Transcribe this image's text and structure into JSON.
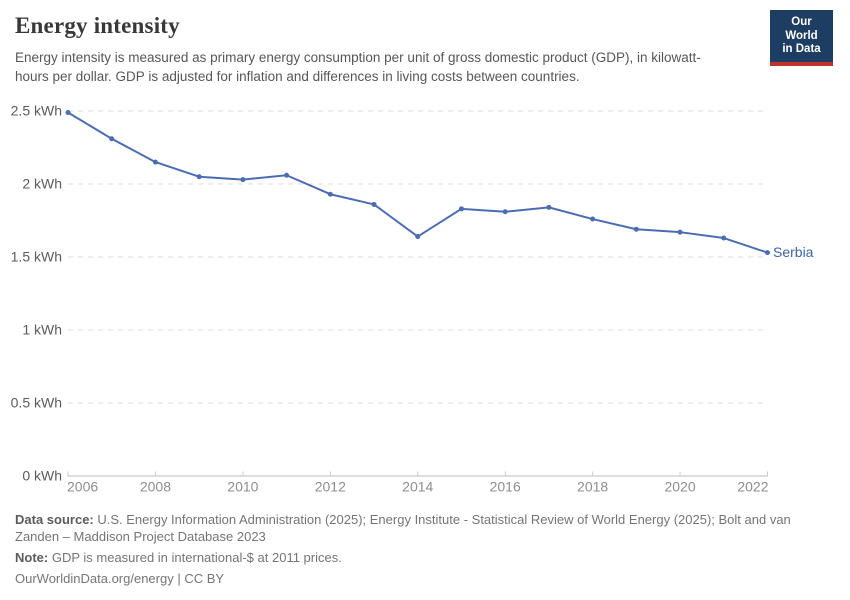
{
  "header": {
    "title": "Energy intensity",
    "subtitle": "Energy intensity is measured as primary energy consumption per unit of gross domestic product (GDP), in kilowatt-hours per dollar. GDP is adjusted for inflation and differences in living costs between countries."
  },
  "logo": {
    "line1": "Our World",
    "line2": "in Data",
    "background": "#1d3d63",
    "accent_bar": "#c0312b",
    "text_color": "#ffffff"
  },
  "chart_data": {
    "type": "line",
    "title": "Energy intensity",
    "x": [
      2006,
      2007,
      2008,
      2009,
      2010,
      2011,
      2012,
      2013,
      2014,
      2015,
      2016,
      2017,
      2018,
      2019,
      2020,
      2021,
      2022
    ],
    "series": [
      {
        "name": "Serbia",
        "values": [
          2.49,
          2.31,
          2.15,
          2.05,
          2.03,
          2.06,
          1.93,
          1.86,
          1.64,
          1.83,
          1.81,
          1.84,
          1.76,
          1.69,
          1.67,
          1.63,
          1.53
        ]
      }
    ],
    "unit": "kWh",
    "end_label": "Serbia",
    "xlabel": "",
    "ylabel": "",
    "ylim": [
      0,
      2.5
    ],
    "y_ticks": [
      {
        "value": 0,
        "label": "0 kWh"
      },
      {
        "value": 0.5,
        "label": "0.5 kWh"
      },
      {
        "value": 1,
        "label": "1 kWh"
      },
      {
        "value": 1.5,
        "label": "1.5 kWh"
      },
      {
        "value": 2,
        "label": "2 kWh"
      },
      {
        "value": 2.5,
        "label": "2.5 kWh"
      }
    ],
    "x_ticks": [
      2006,
      2008,
      2010,
      2012,
      2014,
      2016,
      2018,
      2020,
      2022
    ],
    "grid": "horizontal-dashed",
    "legend_position": "line-end"
  },
  "footer": {
    "source_label": "Data source:",
    "source_text": " U.S. Energy Information Administration (2025); Energy Institute - Statistical Review of World Energy (2025); Bolt and van Zanden – Maddison Project Database 2023",
    "note_label": "Note:",
    "note_text": " GDP is measured in international-$ at 2011 prices.",
    "license": "OurWorldinData.org/energy | CC BY"
  },
  "colors": {
    "line": "#4c6cb2",
    "marker": "#4c6cb2",
    "end_label": "#3d63a8",
    "gridline": "#dcdcdc",
    "axis_line": "#bdbdbd",
    "tick_mark": "#cccccc",
    "y_label": "#5b5b5b",
    "x_label": "#8e8e8e"
  }
}
